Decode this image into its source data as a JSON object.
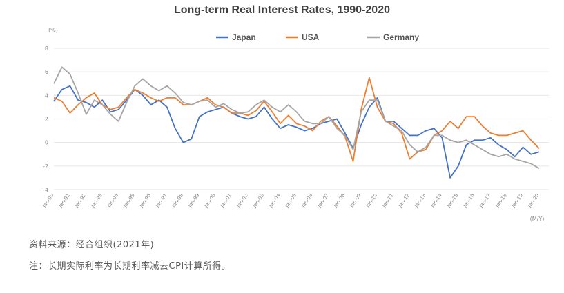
{
  "chart_data": {
    "type": "line",
    "title": "Long-term Real Interest Rates, 1990-2020",
    "y_unit": "(%)",
    "x_unit": "(M/Y)",
    "ylim": [
      -4,
      8
    ],
    "y_ticks": [
      8,
      6,
      4,
      2,
      0,
      -2,
      -4
    ],
    "x_ticks": [
      "Jan-90",
      "Jan-91",
      "Jan-92",
      "Jan-93",
      "Jan-94",
      "Jan-95",
      "Jan-96",
      "Jan-97",
      "Jan-98",
      "Jan-99",
      "Jan-00",
      "Jan-01",
      "Jan-02",
      "Jan-03",
      "Jan-04",
      "Jan-05",
      "Jan-06",
      "Jan-07",
      "Jan-08",
      "Jan-09",
      "Jan-10",
      "Jan-11",
      "Jan-12",
      "Jan-13",
      "Jan-14",
      "Jan-15",
      "Jan-16",
      "Jan-17",
      "Jan-18",
      "Jan-19",
      "Jan-20"
    ],
    "grid": "horizontal",
    "legend_position": "top",
    "x": [
      1990.0,
      1990.5,
      1991.0,
      1991.5,
      1992.0,
      1992.5,
      1993.0,
      1993.5,
      1994.0,
      1994.5,
      1995.0,
      1995.5,
      1996.0,
      1996.5,
      1997.0,
      1997.5,
      1998.0,
      1998.5,
      1999.0,
      1999.5,
      2000.0,
      2000.5,
      2001.0,
      2001.5,
      2002.0,
      2002.5,
      2003.0,
      2003.5,
      2004.0,
      2004.5,
      2005.0,
      2005.5,
      2006.0,
      2006.5,
      2007.0,
      2007.5,
      2008.0,
      2008.5,
      2009.0,
      2009.5,
      2010.0,
      2010.5,
      2011.0,
      2011.5,
      2012.0,
      2012.5,
      2013.0,
      2013.5,
      2014.0,
      2014.5,
      2015.0,
      2015.5,
      2016.0,
      2016.5,
      2017.0,
      2017.5,
      2018.0,
      2018.5,
      2019.0,
      2019.5,
      2020.0
    ],
    "series": [
      {
        "name": "Japan",
        "color": "#4472c4",
        "values": [
          3.5,
          4.5,
          4.8,
          3.6,
          3.4,
          3.0,
          3.6,
          2.6,
          2.8,
          3.6,
          4.5,
          4.0,
          3.2,
          3.6,
          3.0,
          1.2,
          0.0,
          0.3,
          2.2,
          2.6,
          2.8,
          3.0,
          2.5,
          2.2,
          2.0,
          2.2,
          3.0,
          2.0,
          1.2,
          1.5,
          1.3,
          1.0,
          1.2,
          1.6,
          1.8,
          2.0,
          0.8,
          -0.5,
          1.5,
          3.0,
          3.8,
          1.8,
          1.8,
          1.2,
          0.6,
          0.6,
          1.0,
          1.2,
          0.4,
          -3.0,
          -2.0,
          -0.2,
          0.2,
          0.2,
          0.4,
          -0.2,
          -0.6,
          -1.2,
          -0.4,
          -1.0,
          -0.8
        ]
      },
      {
        "name": "USA",
        "color": "#ed7d31",
        "values": [
          3.8,
          3.5,
          2.5,
          3.2,
          3.8,
          4.2,
          3.2,
          2.8,
          3.0,
          3.8,
          4.5,
          4.2,
          3.8,
          3.5,
          3.8,
          3.8,
          3.2,
          3.2,
          3.5,
          3.8,
          3.2,
          3.0,
          2.5,
          2.5,
          2.3,
          2.7,
          3.5,
          2.6,
          1.6,
          2.3,
          1.6,
          1.4,
          1.0,
          1.8,
          2.2,
          1.4,
          0.5,
          -1.6,
          2.8,
          5.5,
          3.0,
          1.8,
          1.6,
          0.8,
          -1.4,
          -0.8,
          -0.6,
          0.6,
          1.0,
          1.8,
          1.2,
          2.2,
          2.2,
          1.4,
          0.8,
          0.6,
          0.6,
          0.8,
          1.0,
          0.2,
          -0.5
        ]
      },
      {
        "name": "Germany",
        "color": "#a5a5a5",
        "values": [
          5.0,
          6.4,
          5.8,
          4.2,
          2.4,
          3.6,
          3.2,
          2.4,
          1.8,
          3.4,
          4.8,
          5.4,
          4.8,
          4.4,
          4.8,
          4.2,
          3.4,
          3.2,
          3.5,
          3.6,
          3.0,
          3.3,
          2.8,
          2.5,
          2.6,
          3.2,
          3.6,
          3.0,
          2.6,
          3.2,
          2.6,
          1.8,
          1.6,
          1.6,
          2.2,
          1.2,
          0.6,
          -0.6,
          2.6,
          3.6,
          3.6,
          1.8,
          1.4,
          1.0,
          -0.2,
          -0.8,
          -0.4,
          0.6,
          0.6,
          0.2,
          0.0,
          0.2,
          -0.2,
          -0.6,
          -1.0,
          -1.2,
          -1.0,
          -1.4,
          -1.6,
          -1.8,
          -2.2
        ]
      }
    ]
  },
  "notes": {
    "source": "资料来源：经合组织(2021年)",
    "remark": "注：长期实际利率为长期利率减去CPI计算所得。"
  }
}
